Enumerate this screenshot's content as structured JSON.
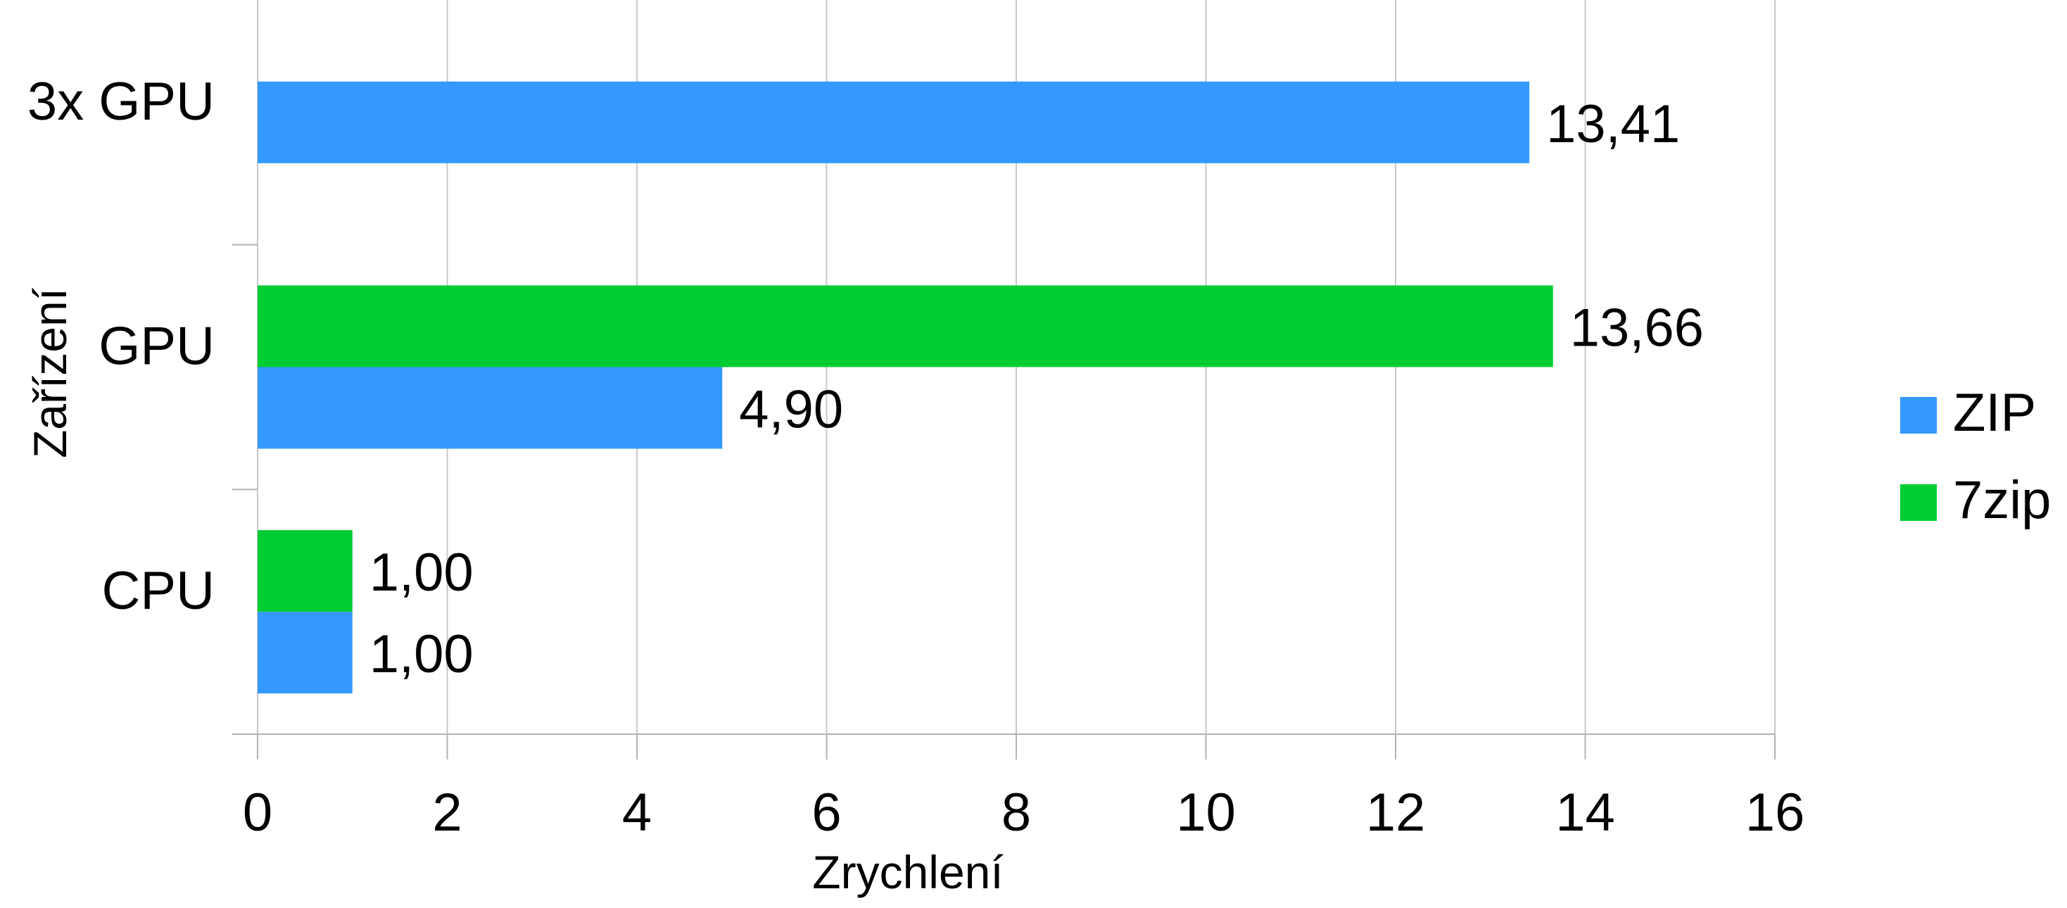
{
  "chart_data": {
    "type": "bar",
    "orientation": "horizontal",
    "categories": [
      "CPU",
      "GPU",
      "3x GPU"
    ],
    "series": [
      {
        "name": "ZIP",
        "color": "#3399ff",
        "values": [
          1.0,
          4.9,
          13.41
        ],
        "labels": [
          "1,00",
          "4,90",
          "13,41"
        ]
      },
      {
        "name": "7zip",
        "color": "#00cc33",
        "values": [
          1.0,
          13.66,
          null
        ],
        "labels": [
          "1,00",
          "13,66",
          ""
        ]
      }
    ],
    "xlabel": "Zrychlení",
    "ylabel": "Zařízení",
    "xlim": [
      0,
      16
    ],
    "xticks": [
      0,
      2,
      4,
      6,
      8,
      10,
      12,
      14,
      16
    ],
    "xtick_labels": [
      "0",
      "2",
      "4",
      "6",
      "8",
      "10",
      "12",
      "14",
      "16"
    ],
    "grid": true,
    "legend": "right"
  }
}
